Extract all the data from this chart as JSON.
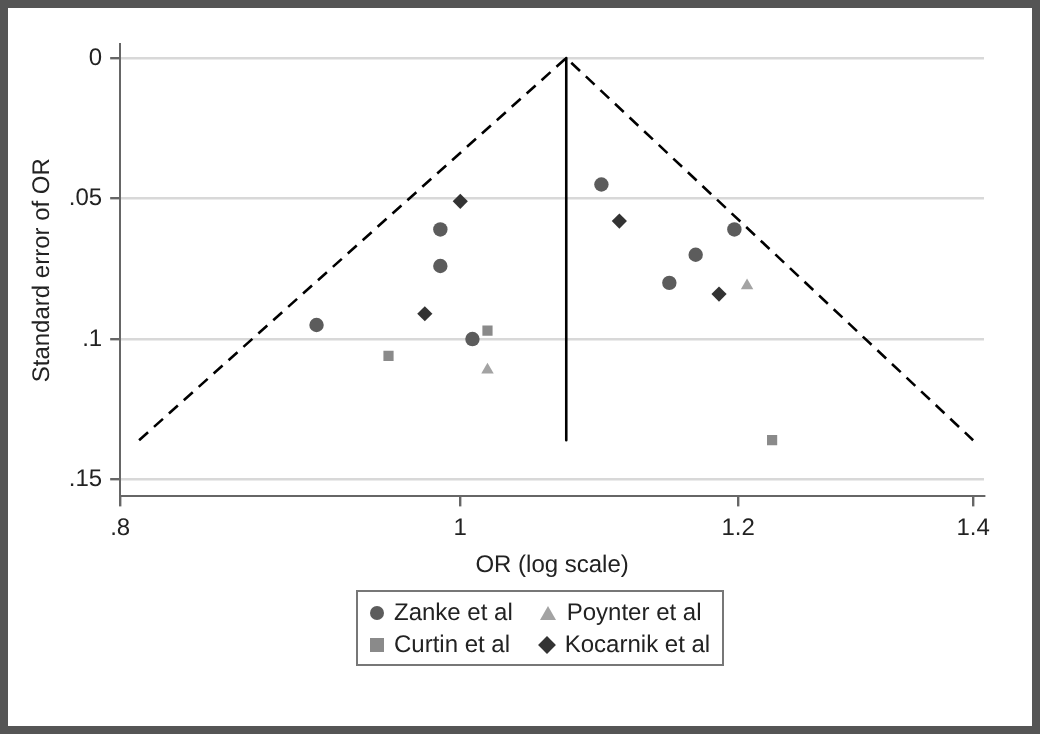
{
  "chart_data": {
    "type": "scatter",
    "xlabel": "OR (log scale)",
    "ylabel": "Standard error of OR",
    "log": "x",
    "xlim": [
      0.8,
      1.41
    ],
    "xticks": [
      {
        "value": 0.8,
        "label": ".8"
      },
      1,
      1.2,
      1.4
    ],
    "ylim": [
      0.156,
      -0.005
    ],
    "yticks": [
      0,
      {
        "value": 0.05,
        "label": ".05"
      },
      {
        "value": 0.1,
        "label": ".1"
      },
      {
        "value": 0.15,
        "label": ".15"
      }
    ],
    "grid": "y",
    "legend": "bottom",
    "series": [
      {
        "name": "Zanke et al",
        "color": "#5c5c5c",
        "marker": "circle",
        "x": [
          0.91,
          0.987,
          0.987,
          1.008,
          1.097,
          1.197,
          1.167,
          1.147
        ],
        "values": [
          0.095,
          0.061,
          0.074,
          0.1,
          0.045,
          0.061,
          0.07,
          0.08
        ]
      },
      {
        "name": "Poynter et al",
        "color": "#a3a3a3",
        "marker": "triangle",
        "x": [
          1.018,
          1.207
        ],
        "values": [
          0.111,
          0.081
        ]
      },
      {
        "name": "Curtin et al",
        "color": "#8a8a8a",
        "marker": "square",
        "x": [
          0.954,
          1.018,
          1.227
        ],
        "values": [
          0.106,
          0.097,
          0.136
        ]
      },
      {
        "name": "Kocarnik et al",
        "color": "#333333",
        "marker": "diamond",
        "x": [
          1.0,
          0.977,
          1.11,
          1.185
        ],
        "values": [
          0.051,
          0.091,
          0.058,
          0.084
        ]
      },
      {
        "type": "line",
        "color": "#000000",
        "marker": "none",
        "line_style": "dashed",
        "x": [
          0.81,
          1.072,
          1.4
        ],
        "values": [
          0.136,
          0,
          0.136
        ]
      },
      {
        "type": "line",
        "color": "#000000",
        "marker": "none",
        "line_style": "solid",
        "x": [
          1.072,
          1.072
        ],
        "values": [
          0,
          0.136
        ]
      }
    ]
  }
}
